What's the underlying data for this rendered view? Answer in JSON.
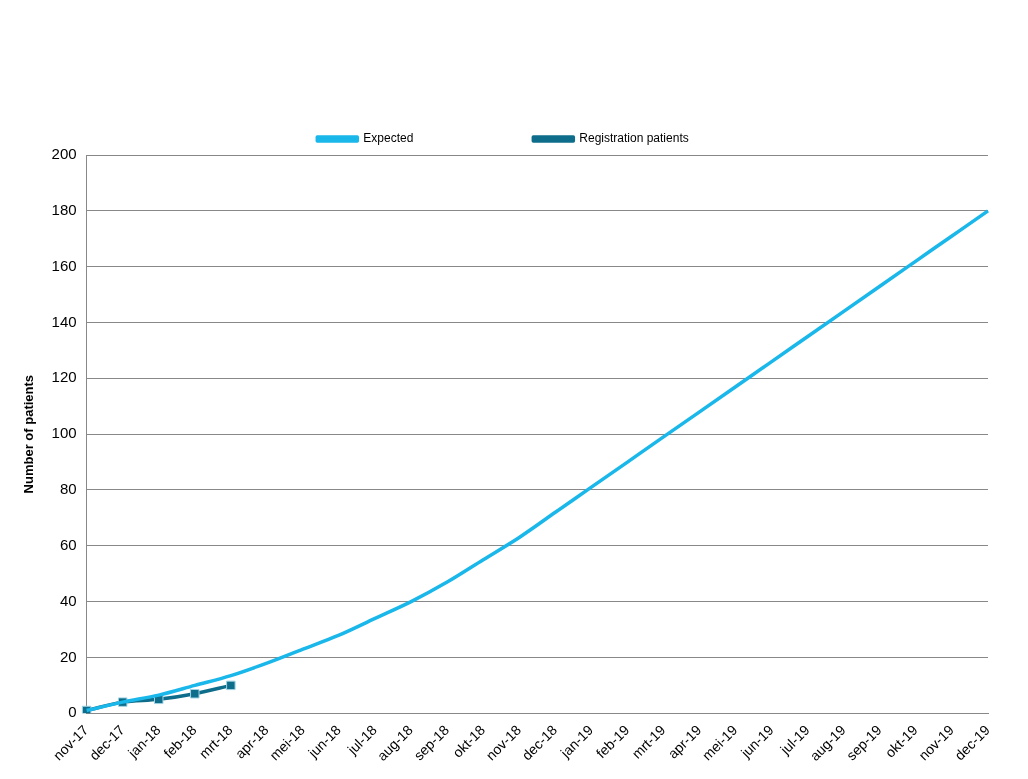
{
  "chart_data": {
    "type": "line",
    "ylabel": "Number of patients",
    "categories": [
      "nov-17",
      "dec-17",
      "jan-18",
      "feb-18",
      "mrt-18",
      "apr-18",
      "mei-18",
      "jun-18",
      "jul-18",
      "aug-18",
      "sep-18",
      "okt-18",
      "nov-18",
      "dec-18",
      "jan-19",
      "feb-19",
      "mrt-19",
      "apr-19",
      "mei-19",
      "jun-19",
      "jul-19",
      "aug-19",
      "sep-19",
      "okt-19",
      "nov-19",
      "dec-19"
    ],
    "series": [
      {
        "name": "Expected",
        "color": "#1ab7ea",
        "marker": "none",
        "values": [
          1,
          4,
          6.5,
          10,
          13.5,
          18,
          23,
          28,
          34,
          40,
          47,
          55,
          63,
          72,
          81,
          90,
          99,
          108,
          117,
          126,
          135,
          144,
          153,
          162,
          171,
          180
        ]
      },
      {
        "name": "Registration patients",
        "color": "#0e6d8a",
        "marker": "square",
        "values": [
          1,
          4,
          5,
          7,
          10,
          null,
          null,
          null,
          null,
          null,
          null,
          null,
          null,
          null,
          null,
          null,
          null,
          null,
          null,
          null,
          null,
          null,
          null,
          null,
          null,
          null
        ]
      }
    ],
    "ylim": [
      0,
      200
    ],
    "yticks": [
      0,
      20,
      40,
      60,
      80,
      100,
      120,
      140,
      160,
      180,
      200
    ],
    "grid": "y",
    "legend": "top"
  }
}
